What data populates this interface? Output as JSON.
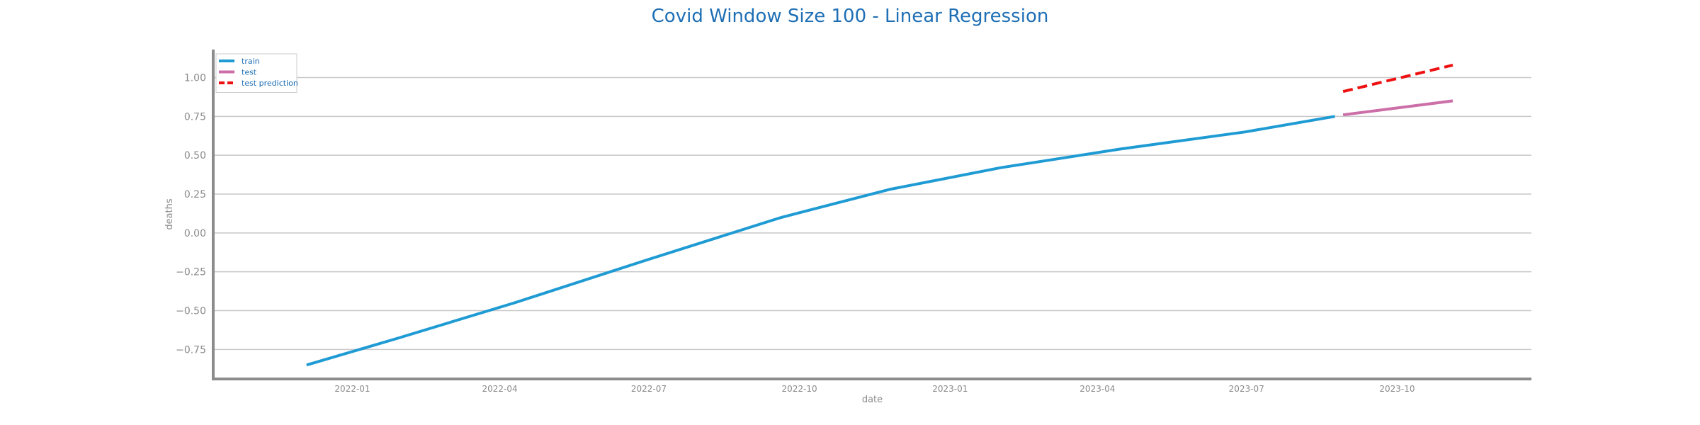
{
  "chart_data": {
    "type": "line",
    "title": "Covid Window Size 100 - Linear Regression",
    "xlabel": "date",
    "ylabel": "deaths",
    "ylim": [
      -0.94,
      1.18
    ],
    "xlim": [
      "2021-10-08",
      "2023-12-22"
    ],
    "x_ticks": [
      "2022-01",
      "2022-04",
      "2022-07",
      "2022-10",
      "2023-01",
      "2023-04",
      "2023-07",
      "2023-10"
    ],
    "y_ticks": [
      1.0,
      0.75,
      0.5,
      0.25,
      0.0,
      -0.25,
      -0.5,
      -0.75
    ],
    "y_tick_labels": [
      "1.00",
      "0.75",
      "0.50",
      "0.25",
      "0.00",
      "−0.25",
      "−0.50",
      "−0.75"
    ],
    "grid": "horizontal",
    "legend_position": "top-left",
    "series": [
      {
        "name": "train",
        "color": "#1f9bd4",
        "style": "solid",
        "x": [
          "2021-12-04",
          "2022-01-28",
          "2022-04-10",
          "2022-07-01",
          "2022-09-20",
          "2022-11-25",
          "2023-02-01",
          "2023-04-15",
          "2023-06-30",
          "2023-08-24"
        ],
        "y": [
          -0.85,
          -0.68,
          -0.45,
          -0.17,
          0.1,
          0.28,
          0.42,
          0.54,
          0.65,
          0.75
        ]
      },
      {
        "name": "test",
        "color": "#cc6fa8",
        "style": "solid",
        "x": [
          "2023-08-29",
          "2023-11-04"
        ],
        "y": [
          0.76,
          0.85
        ]
      },
      {
        "name": "test prediction",
        "color": "#ee1111",
        "style": "dashed",
        "x": [
          "2023-08-29",
          "2023-11-04"
        ],
        "y": [
          0.91,
          1.08
        ]
      }
    ]
  }
}
